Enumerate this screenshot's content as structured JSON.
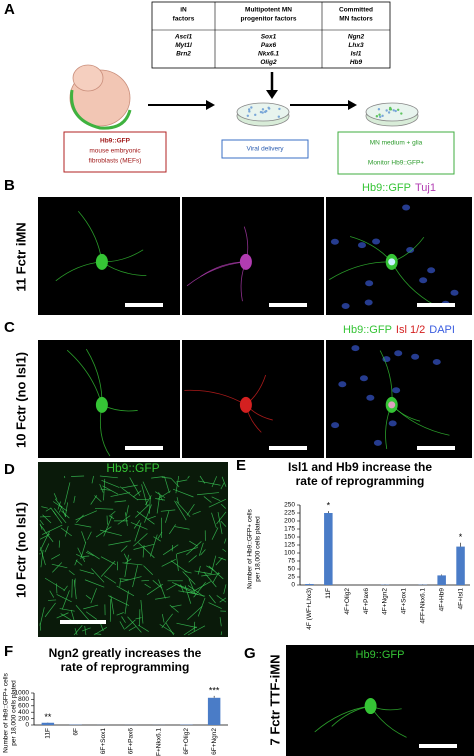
{
  "panel_a": {
    "letter": "A",
    "table": [
      {
        "header": [
          "iN",
          "factors"
        ],
        "genes": [
          "Ascl1",
          "Myt1l",
          "Brn2"
        ]
      },
      {
        "header": [
          "Multipotent MN",
          "progenitor factors"
        ],
        "genes": [
          "Sox1",
          "Pax6",
          "Nkx6.1",
          "Olig2"
        ]
      },
      {
        "header": [
          "Committed",
          "MN factors"
        ],
        "genes": [
          "Ngn2",
          "Lhx3",
          "Isl1",
          "Hb9"
        ]
      }
    ],
    "source_box": [
      "Hb9::GFP",
      "mouse embryonic",
      "fibroblasts (MEFs)"
    ],
    "delivery_box": "Viral delivery",
    "culture_box": [
      "MN medium + glia",
      "Monitor Hb9::GFP+"
    ]
  },
  "panel_b": {
    "letter": "B",
    "row_label": "11 Fctr iMN",
    "channels": [
      {
        "label": "Hb9::GFP",
        "color": "#35c435"
      },
      {
        "label": "Tuj1",
        "color": "#b23cb2"
      }
    ],
    "merge": [
      {
        "label": "Hb9::GFP",
        "color": "#35c435"
      },
      {
        "label": "Tuj1",
        "color": "#b23cb2"
      }
    ]
  },
  "panel_c": {
    "letter": "C",
    "row_label": "10 Fctr (no Isl1)",
    "channels": [
      {
        "label": "Hb9::GFP",
        "color": "#35c435"
      },
      {
        "label": "Isl 1/2",
        "color": "#d42020"
      }
    ],
    "merge": [
      {
        "label": "Hb9::GFP",
        "color": "#35c435"
      },
      {
        "label": "Isl 1/2",
        "color": "#d42020"
      },
      {
        "label": "DAPI",
        "color": "#3a5de0"
      }
    ]
  },
  "panel_d": {
    "letter": "D",
    "row_label": "10 Fctr (no Isl1)",
    "channel": {
      "label": "Hb9::GFP",
      "color": "#35c435"
    }
  },
  "panel_g": {
    "letter": "G",
    "row_label": "7 Fctr TTF-iMN",
    "channel": {
      "label": "Hb9::GFP",
      "color": "#35c435"
    }
  },
  "chart_data": [
    {
      "type": "bar",
      "letter": "E",
      "title": [
        "Isl1 and Hb9 increase the",
        "rate of reprogramming"
      ],
      "ylabel": [
        "Number of Hb9::GFP+ cells",
        "per 18,000 cells plated"
      ],
      "categories": [
        "4F (WF+Lhx3)",
        "11F",
        "4F+Olig2",
        "4F+Pax6",
        "4F+Ngn2",
        "4F+Sox1",
        "4FF+Nkx6.1",
        "4F+Hb9",
        "4F+Isl1"
      ],
      "values": [
        3,
        225,
        0,
        0,
        1,
        0,
        1,
        30,
        120
      ],
      "errors": [
        1,
        6,
        0,
        0,
        1,
        0,
        1,
        3,
        12
      ],
      "markers": [
        null,
        "*",
        null,
        null,
        null,
        null,
        null,
        null,
        "*"
      ],
      "color": "#4a7cc7",
      "ylim": [
        0,
        250
      ],
      "yticks": [
        0,
        25,
        50,
        75,
        100,
        125,
        150,
        175,
        200,
        225,
        250
      ]
    },
    {
      "type": "bar",
      "letter": "F",
      "title": [
        "Ngn2 greatly increases the",
        "rate of reprogramming"
      ],
      "ylabel": [
        "Number of Hb9::GFP+ cells",
        "per 18,000 cells plated"
      ],
      "categories": [
        "11F",
        "6F",
        "6F+Sox1",
        "6F+Pax6",
        "6F+Nkx6.1",
        "6F+Olig2",
        "6F+Ngn2"
      ],
      "values": [
        70,
        10,
        3,
        3,
        3,
        10,
        850
      ],
      "errors": [
        10,
        3,
        1,
        1,
        1,
        3,
        60
      ],
      "markers": [
        "**",
        null,
        null,
        null,
        null,
        null,
        "***"
      ],
      "color": "#4a7cc7",
      "ylim": [
        0,
        1000
      ],
      "yticks": [
        0,
        200,
        400,
        600,
        800,
        1000
      ]
    }
  ]
}
